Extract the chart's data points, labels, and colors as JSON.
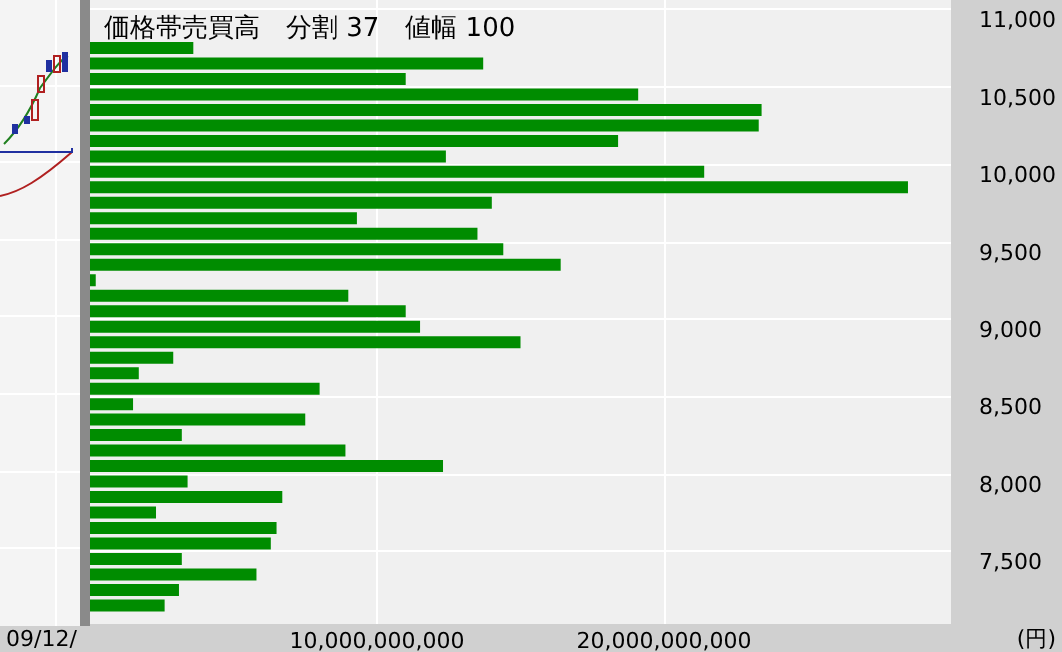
{
  "chart_data": {
    "type": "bar",
    "orientation": "horizontal",
    "title": "価格帯売買高　分割 37　値幅 100",
    "ylabel": "(円)",
    "annotations": [
      "09/12/"
    ],
    "x": [
      10750,
      10650,
      10550,
      10450,
      10350,
      10250,
      10150,
      10050,
      9950,
      9850,
      9750,
      9650,
      9550,
      9450,
      9350,
      9250,
      9150,
      9050,
      8950,
      8850,
      8750,
      8650,
      8550,
      8450,
      8350,
      8250,
      8150,
      8050,
      7950,
      7850,
      7750,
      7650,
      7550,
      7450,
      7350,
      7250,
      7150
    ],
    "values": [
      3600000000,
      13700000000,
      11000000000,
      19100000000,
      23400000000,
      23300000000,
      18400000000,
      12400000000,
      21400000000,
      28500000000,
      14000000000,
      9300000000,
      13500000000,
      14400000000,
      16400000000,
      200000000,
      9000000000,
      11000000000,
      11500000000,
      15000000000,
      2900000000,
      1700000000,
      8000000000,
      1500000000,
      7500000000,
      3200000000,
      8900000000,
      12300000000,
      3400000000,
      6700000000,
      2300000000,
      6500000000,
      6300000000,
      3200000000,
      5800000000,
      3100000000,
      2600000000
    ],
    "color": "#008c00",
    "xlim": [
      0,
      30000000000
    ],
    "xticks": [
      {
        "value": 10000000000,
        "label": "10,000,000,000"
      },
      {
        "value": 20000000000,
        "label": "20,000,000,000"
      }
    ],
    "ylim": [
      7030,
      11060
    ],
    "yticks": [
      {
        "value": 7500,
        "label": "7,500"
      },
      {
        "value": 8000,
        "label": "8,000"
      },
      {
        "value": 8500,
        "label": "8,500"
      },
      {
        "value": 9000,
        "label": "9,000"
      },
      {
        "value": 9500,
        "label": "9,500"
      },
      {
        "value": 10000,
        "label": "10,000"
      },
      {
        "value": 10500,
        "label": "10,500"
      },
      {
        "value": 11000,
        "label": "11,000"
      }
    ],
    "grid": true
  }
}
